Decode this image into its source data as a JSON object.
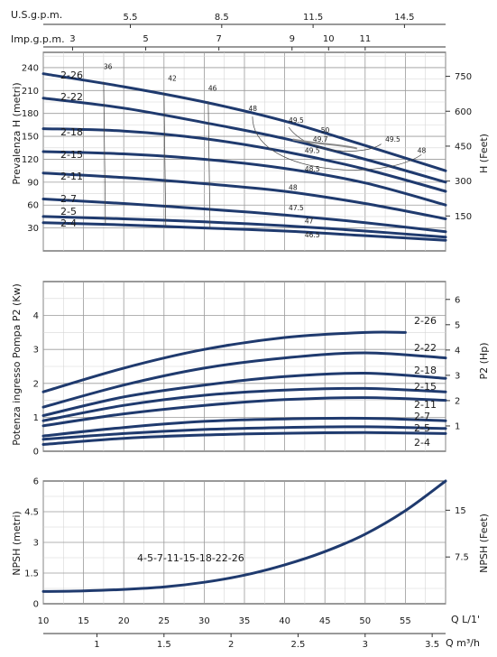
{
  "chart_data": {
    "type": "line",
    "top_axes": {
      "us_gpm": {
        "label": "U.S.g.p.m.",
        "ticks": [
          5.5,
          8.5,
          11.5,
          14.5
        ]
      },
      "imp_gpm": {
        "label": "Imp.g.p.m.",
        "ticks": [
          3,
          5,
          7,
          9,
          10,
          11
        ]
      }
    },
    "bottom_axes": {
      "lpm": {
        "label": "Q  L/1'",
        "ticks": [
          10,
          15,
          20,
          25,
          30,
          35,
          40,
          45,
          50,
          55
        ]
      },
      "m3h": {
        "label": "Q  m³/h",
        "ticks": [
          "1",
          "1.5",
          "2",
          "2.5",
          "3",
          "3.5"
        ]
      }
    },
    "head": {
      "ylabel": "Prevalenza H (metri)",
      "y2label": "H (Feet)",
      "yticks": [
        30,
        60,
        90,
        120,
        150,
        180,
        210,
        240
      ],
      "y2ticks": [
        150,
        300,
        450,
        600,
        750
      ],
      "ylim": [
        0,
        260
      ],
      "grid": true,
      "series": [
        {
          "name": "2-26",
          "x": [
            10,
            20,
            30,
            40,
            50,
            60
          ],
          "y": [
            232,
            215,
            195,
            170,
            138,
            105
          ]
        },
        {
          "name": "2-22",
          "x": [
            10,
            20,
            30,
            40,
            50,
            60
          ],
          "y": [
            200,
            187,
            168,
            147,
            120,
            90
          ]
        },
        {
          "name": "2-18",
          "x": [
            10,
            20,
            30,
            40,
            50,
            60
          ],
          "y": [
            160,
            157,
            147,
            130,
            107,
            78
          ]
        },
        {
          "name": "2-15",
          "x": [
            10,
            20,
            30,
            40,
            50,
            60
          ],
          "y": [
            130,
            127,
            120,
            108,
            89,
            60
          ]
        },
        {
          "name": "2-11",
          "x": [
            10,
            20,
            30,
            40,
            50,
            60
          ],
          "y": [
            102,
            96,
            88,
            78,
            62,
            42
          ]
        },
        {
          "name": "2-7",
          "x": [
            10,
            20,
            30,
            40,
            50,
            60
          ],
          "y": [
            68,
            62,
            55,
            47,
            37,
            25
          ]
        },
        {
          "name": "2-5",
          "x": [
            10,
            20,
            30,
            40,
            50,
            60
          ],
          "y": [
            45,
            42,
            38,
            33,
            26,
            18
          ]
        },
        {
          "name": "2-4",
          "x": [
            10,
            20,
            30,
            40,
            50,
            60
          ],
          "y": [
            37,
            34,
            30,
            26,
            20,
            14
          ]
        }
      ],
      "efficiency_labels": [
        {
          "text": "36",
          "x": 17.5,
          "y": 238
        },
        {
          "text": "42",
          "x": 25.5,
          "y": 223
        },
        {
          "text": "46",
          "x": 30.5,
          "y": 210
        },
        {
          "text": "48",
          "x": 35.5,
          "y": 183
        },
        {
          "text": "49.5",
          "x": 40.5,
          "y": 168
        },
        {
          "text": "50",
          "x": 44.5,
          "y": 155
        },
        {
          "text": "49.7",
          "x": 43.5,
          "y": 143
        },
        {
          "text": "49.5",
          "x": 52.5,
          "y": 143
        },
        {
          "text": "49.5",
          "x": 42.5,
          "y": 128
        },
        {
          "text": "48",
          "x": 56.5,
          "y": 128
        },
        {
          "text": "48.5",
          "x": 42.5,
          "y": 104
        },
        {
          "text": "48",
          "x": 40.5,
          "y": 80
        },
        {
          "text": "47.5",
          "x": 40.5,
          "y": 53
        },
        {
          "text": "47",
          "x": 42.5,
          "y": 36
        },
        {
          "text": "46.5",
          "x": 42.5,
          "y": 18
        }
      ]
    },
    "power": {
      "ylabel": "Potenza ingresso Pompa P2 (Kw)",
      "y2label": "P2 (Hp)",
      "yticks": [
        0,
        1,
        2,
        3,
        4
      ],
      "y2ticks": [
        1,
        2,
        3,
        4,
        5,
        6
      ],
      "ylim": [
        0,
        5
      ],
      "grid": true,
      "series": [
        {
          "name": "2-26",
          "x": [
            10,
            20,
            30,
            40,
            50,
            55
          ],
          "y": [
            1.75,
            2.45,
            3.0,
            3.35,
            3.5,
            3.5
          ]
        },
        {
          "name": "2-22",
          "x": [
            10,
            20,
            30,
            40,
            50,
            60
          ],
          "y": [
            1.3,
            1.95,
            2.45,
            2.75,
            2.9,
            2.75
          ]
        },
        {
          "name": "2-18",
          "x": [
            10,
            20,
            30,
            40,
            50,
            60
          ],
          "y": [
            1.05,
            1.6,
            1.95,
            2.2,
            2.3,
            2.15
          ]
        },
        {
          "name": "2-15",
          "x": [
            10,
            20,
            30,
            40,
            50,
            60
          ],
          "y": [
            0.9,
            1.35,
            1.65,
            1.8,
            1.85,
            1.75
          ]
        },
        {
          "name": "2-11",
          "x": [
            10,
            20,
            30,
            40,
            50,
            60
          ],
          "y": [
            0.75,
            1.1,
            1.35,
            1.52,
            1.58,
            1.5
          ]
        },
        {
          "name": "2-7",
          "x": [
            10,
            20,
            30,
            40,
            50,
            60
          ],
          "y": [
            0.45,
            0.7,
            0.88,
            0.95,
            0.97,
            0.9
          ]
        },
        {
          "name": "2-5",
          "x": [
            10,
            20,
            30,
            40,
            50,
            60
          ],
          "y": [
            0.35,
            0.52,
            0.64,
            0.7,
            0.72,
            0.67
          ]
        },
        {
          "name": "2-4",
          "x": [
            10,
            20,
            30,
            40,
            50,
            60
          ],
          "y": [
            0.2,
            0.38,
            0.48,
            0.53,
            0.55,
            0.52
          ]
        }
      ]
    },
    "npsh": {
      "ylabel": "NPSH (metri)",
      "y2label": "NPSH (Feet)",
      "yticks": [
        "0",
        "1.5",
        "3",
        "4.5",
        "6"
      ],
      "y2ticks": [
        "7.5",
        "15"
      ],
      "ylim": [
        0,
        6
      ],
      "grid": true,
      "curve_label": "4-5-7-11-15-18-22-26",
      "series": [
        {
          "name": "4-5-7-11-15-18-22-26",
          "x": [
            10,
            15,
            20,
            25,
            30,
            35,
            40,
            45,
            50,
            55,
            60
          ],
          "y": [
            0.6,
            0.63,
            0.7,
            0.82,
            1.05,
            1.4,
            1.9,
            2.55,
            3.4,
            4.55,
            6.0
          ]
        }
      ]
    }
  }
}
